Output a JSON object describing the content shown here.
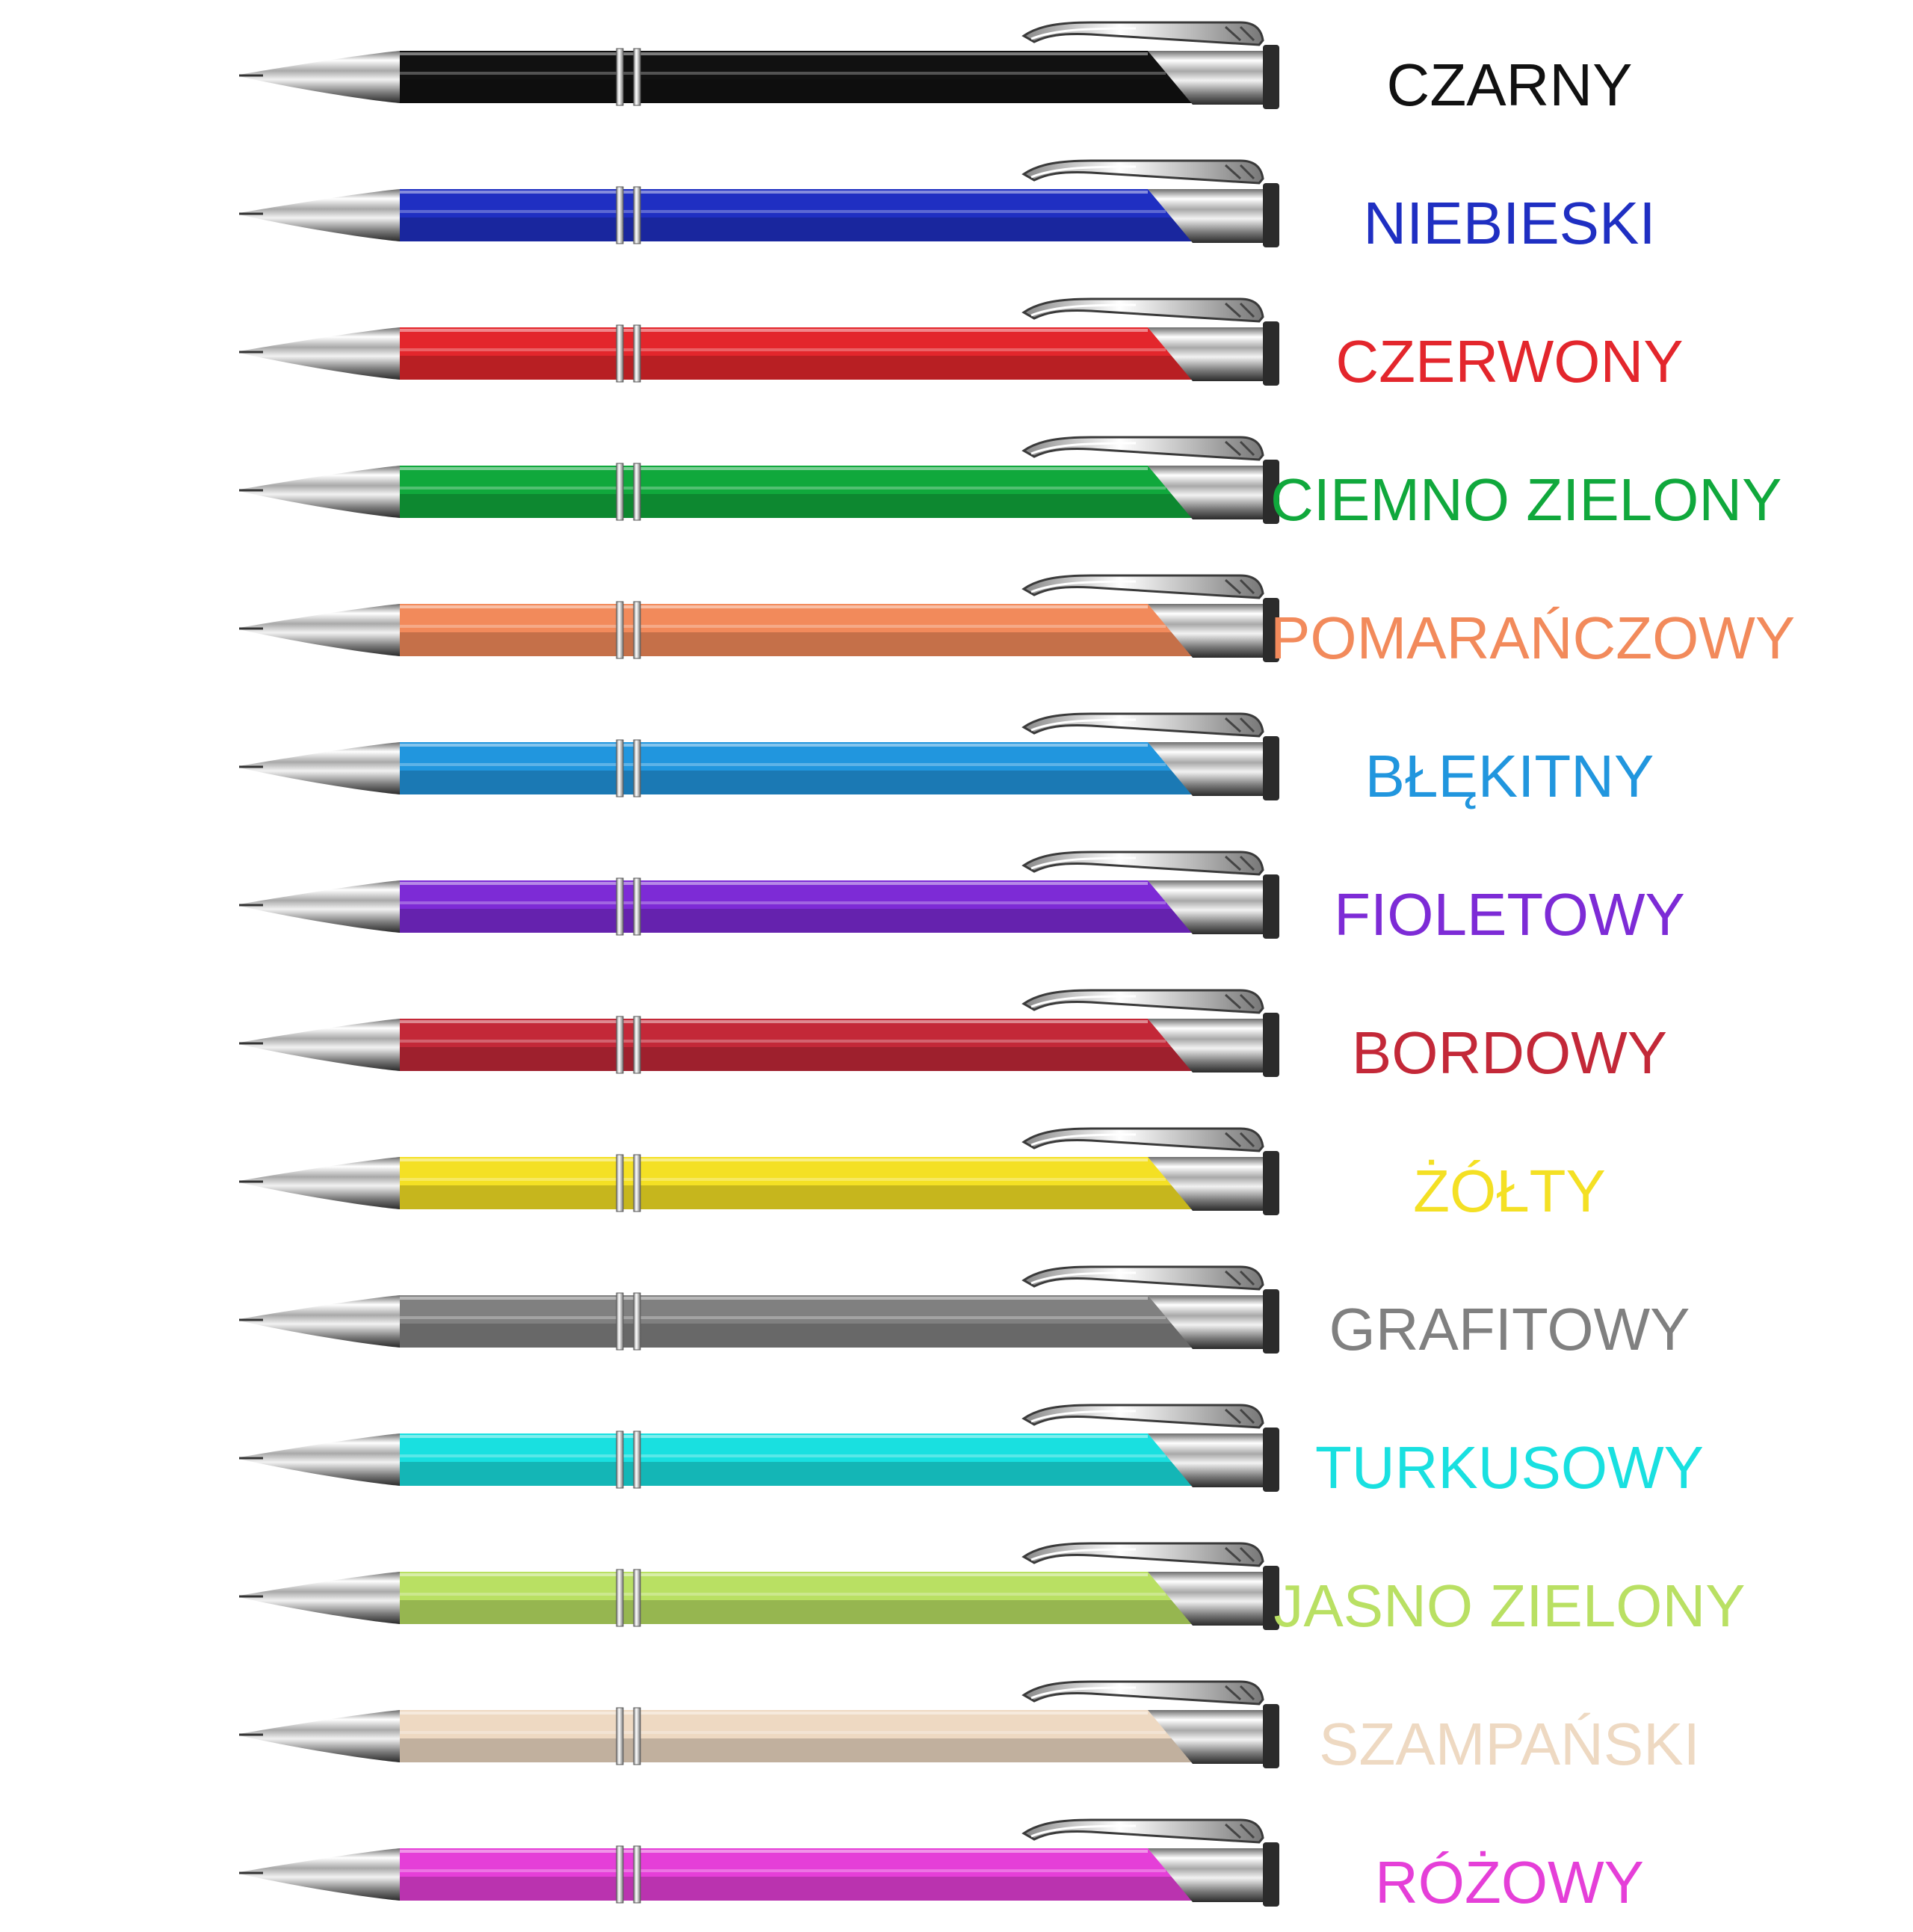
{
  "pens": [
    {
      "label": "CZARNY",
      "color": "#111111"
    },
    {
      "label": "NIEBIESKI",
      "color": "#1f2fc2"
    },
    {
      "label": "CZERWONY",
      "color": "#e3262c"
    },
    {
      "label": "CIEMNO ZIELONY",
      "color": "#10a83c"
    },
    {
      "label": "POMARAŃCZOWY",
      "color": "#f28a5b"
    },
    {
      "label": "BŁĘKITNY",
      "color": "#2196de"
    },
    {
      "label": "FIOLETOWY",
      "color": "#7d2bd6"
    },
    {
      "label": "BORDOWY",
      "color": "#c32838"
    },
    {
      "label": "ŻÓŁTY",
      "color": "#f4e024"
    },
    {
      "label": "GRAFITOWY",
      "color": "#808080"
    },
    {
      "label": "TURKUSOWY",
      "color": "#19e0e0"
    },
    {
      "label": "JASNO ZIELONY",
      "color": "#b9e063"
    },
    {
      "label": "SZAMPAŃSKI",
      "color": "#eed9c2"
    },
    {
      "label": "RÓŻOWY",
      "color": "#e53fd8"
    }
  ]
}
